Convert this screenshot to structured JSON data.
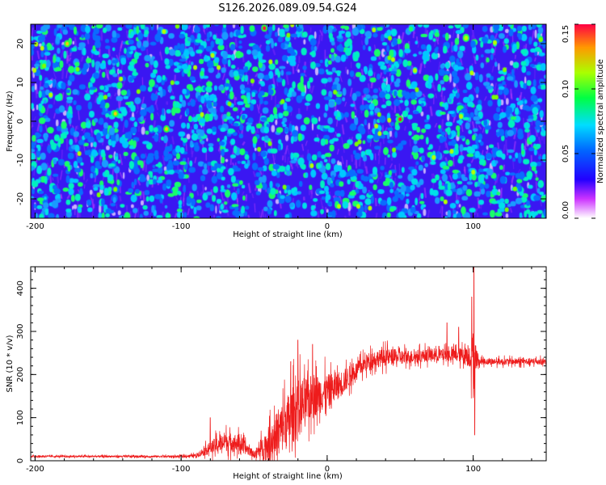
{
  "title": "S126.2026.089.09.54.G24",
  "chart_data": [
    {
      "type": "heatmap",
      "xlabel": "Height of straight line (km)",
      "ylabel": "Frequency (Hz)",
      "xlim": [
        -203,
        150
      ],
      "ylim": [
        -25,
        25
      ],
      "xticks": [
        -200,
        -100,
        0,
        100
      ],
      "xtick_labels": [
        "-200",
        "-100",
        "0",
        "100"
      ],
      "yticks": [
        20,
        10,
        0,
        -10,
        -20
      ],
      "ytick_labels": [
        "20",
        "10",
        "0",
        "-10",
        "-20"
      ],
      "colorbar": {
        "label": "Normalized spectral amplitude",
        "range": [
          0,
          0.15
        ],
        "ticks": [
          0.15,
          0.1,
          0.05,
          0.0
        ],
        "tick_labels": [
          "0.15",
          "0.10",
          "0.05",
          "0.00"
        ]
      },
      "description_values": {
        "background_level": 0.03,
        "max_peak": 0.15,
        "peaks": [
          [
            -43,
            24,
            0.15
          ],
          [
            50,
            0.5,
            0.14
          ],
          [
            -178,
            20,
            0.11
          ],
          [
            -145,
            2,
            0.1
          ],
          [
            -110,
            -2,
            0.09
          ]
        ]
      }
    },
    {
      "type": "line",
      "xlabel": "Height of straight line (km)",
      "ylabel": "SNR (10 * v/v)",
      "xlim": [
        -203,
        150
      ],
      "ylim": [
        0,
        450
      ],
      "xticks": [
        -200,
        -100,
        0,
        100
      ],
      "xtick_labels": [
        "-200",
        "-100",
        "0",
        "100"
      ],
      "yticks": [
        0,
        100,
        200,
        300,
        400
      ],
      "ytick_labels": [
        "0",
        "100",
        "200",
        "300",
        "400"
      ],
      "series": [
        {
          "name": "SNR",
          "color": "#ee1c1c",
          "envelope": {
            "x": [
              -203,
              -100,
              -90,
              -80,
              -70,
              -60,
              -50,
              -40,
              -30,
              -20,
              -10,
              0,
              10,
              20,
              30,
              40,
              50,
              60,
              70,
              80,
              90,
              98,
              100,
              102,
              104,
              110,
              120,
              130,
              140,
              150
            ],
            "mean": [
              10,
              10,
              12,
              30,
              45,
              40,
              15,
              40,
              80,
              120,
              150,
              160,
              180,
              210,
              235,
              240,
              240,
              242,
              245,
              245,
              245,
              245,
              220,
              240,
              230,
              230,
              230,
              230,
              230,
              230
            ],
            "spread": [
              4,
              5,
              8,
              30,
              45,
              40,
              15,
              80,
              120,
              140,
              100,
              80,
              60,
              40,
              40,
              40,
              35,
              30,
              30,
              30,
              30,
              60,
              160,
              60,
              15,
              15,
              15,
              15,
              15,
              15
            ]
          },
          "spikes": [
            [
              100.5,
              450
            ],
            [
              101,
              60
            ],
            [
              99,
              380
            ],
            [
              82,
              320
            ],
            [
              90,
              310
            ],
            [
              -20,
              280
            ],
            [
              -10,
              270
            ],
            [
              -25,
              230
            ],
            [
              -80,
              100
            ]
          ]
        }
      ]
    }
  ]
}
